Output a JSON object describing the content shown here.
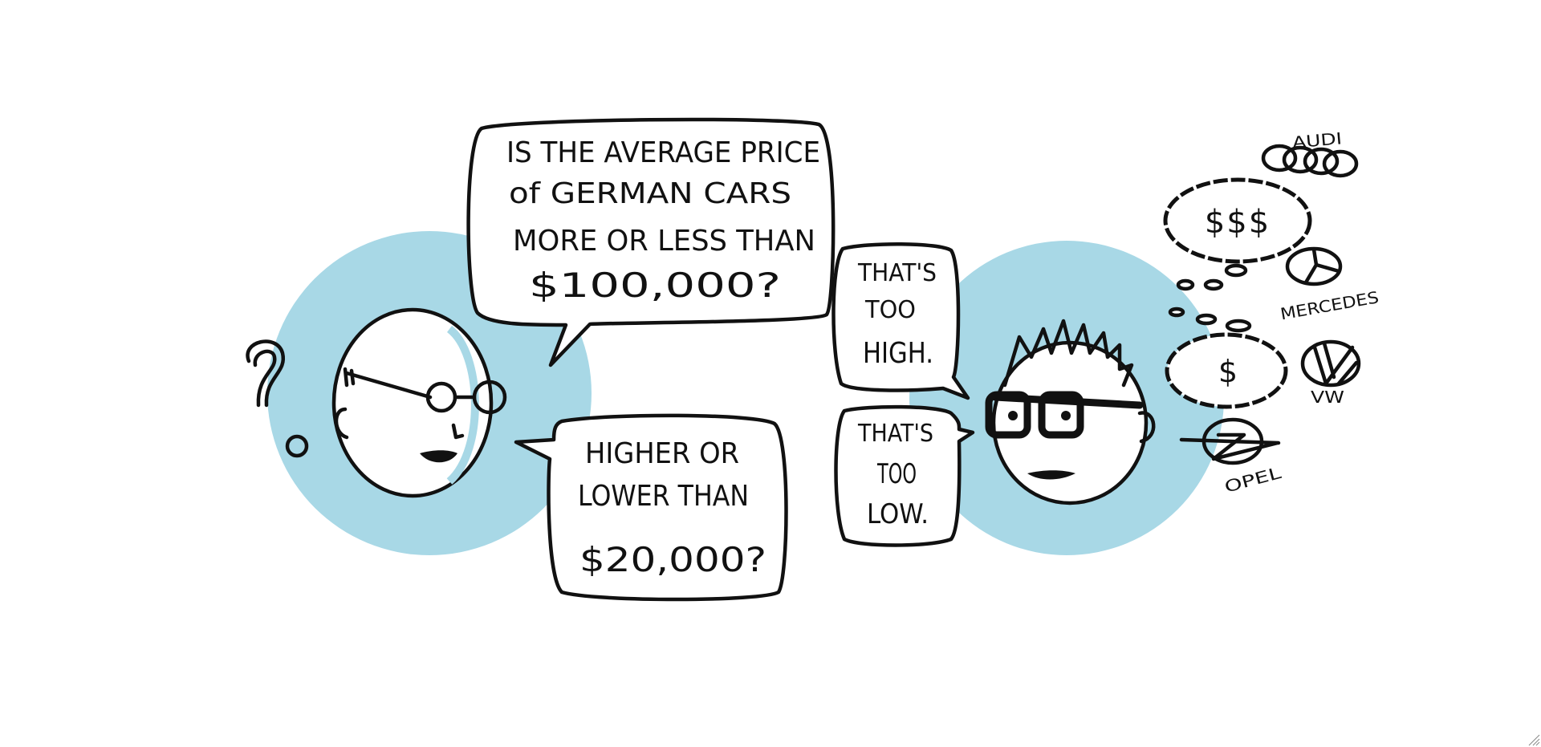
{
  "colors": {
    "accent_circle": "#a8d8e6",
    "ink": "#111111",
    "background": "#ffffff"
  },
  "question_bubble": {
    "lines": [
      "IS THE AVERAGE PRICE",
      "of GERMAN CARS",
      "MORE OR LESS THAN",
      "$100,000?"
    ]
  },
  "followup_bubble": {
    "lines": [
      "HIGHER OR",
      "LOWER THAN",
      "$20,000?"
    ]
  },
  "reply_high": {
    "lines": [
      "THAT'S",
      "TOO",
      "HIGH."
    ]
  },
  "reply_low": {
    "lines": [
      "THAT'S",
      "TOO",
      "LOW."
    ]
  },
  "left_character": {
    "thought_icon": "question-mark-icon"
  },
  "thoughts": {
    "high_price": "$$$",
    "low_price": "$"
  },
  "brands": [
    {
      "label": "AUDI",
      "icon": "audi-rings-icon"
    },
    {
      "label": "MERCEDES",
      "icon": "mercedes-star-icon"
    },
    {
      "label": "VW",
      "icon": "vw-logo-icon"
    },
    {
      "label": "OPEL",
      "icon": "opel-logo-icon"
    }
  ]
}
